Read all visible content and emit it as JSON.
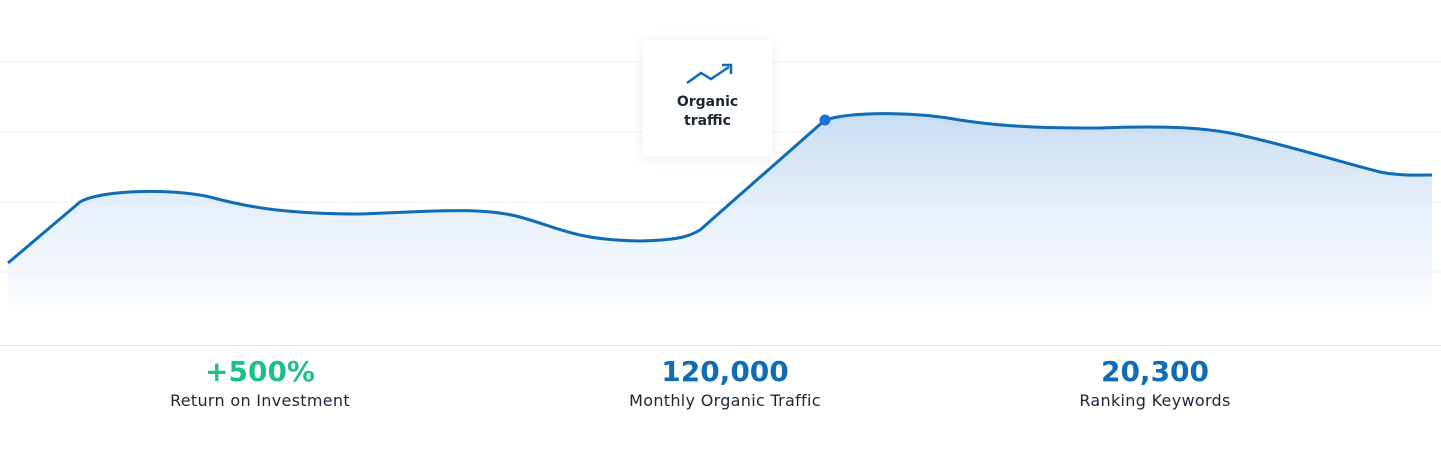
{
  "tooltip": {
    "label": "Organic traffic"
  },
  "stats": [
    {
      "value": "+500%",
      "label": "Return on Investment"
    },
    {
      "value": "120,000",
      "label": "Monthly Organic Traffic"
    },
    {
      "value": "20,300",
      "label": "Ranking Keywords"
    }
  ]
}
